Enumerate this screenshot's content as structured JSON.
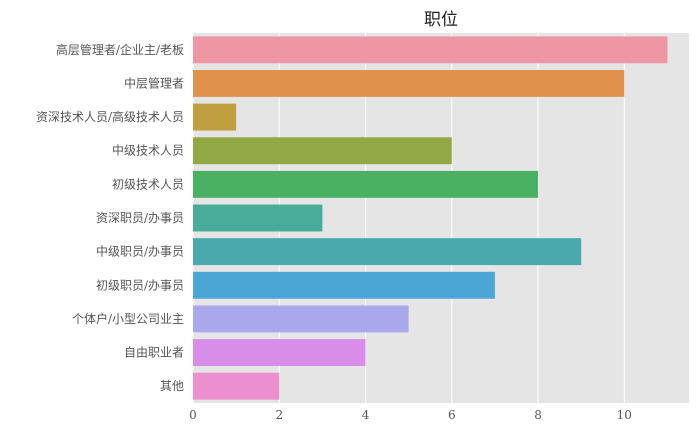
{
  "chart_data": {
    "type": "bar",
    "orientation": "horizontal",
    "title": "职位",
    "xlabel": "",
    "ylabel": "",
    "categories": [
      "高层管理者/企业主/老板",
      "中层管理者",
      "资深技术人员/高级技术人员",
      "中级技术人员",
      "初级技术人员",
      "资深职员/办事员",
      "中级职员/办事员",
      "初级职员/办事员",
      "个体户/小型公司业主",
      "自由职业者",
      "其他"
    ],
    "values": [
      11,
      10,
      1,
      6,
      8,
      3,
      9,
      7,
      5,
      4,
      2
    ],
    "colors": [
      "#ee96a4",
      "#e0924c",
      "#bf9f40",
      "#92a844",
      "#4ab163",
      "#49ab99",
      "#4aa9ad",
      "#4ba6d6",
      "#a9a8ed",
      "#d88ee9",
      "#ec8fcf"
    ],
    "xlim": [
      0,
      11.5
    ],
    "xticks": [
      0,
      2,
      4,
      6,
      8,
      10
    ],
    "grid": true,
    "background": "#e5e5e5",
    "grid_color": "#ffffff"
  }
}
